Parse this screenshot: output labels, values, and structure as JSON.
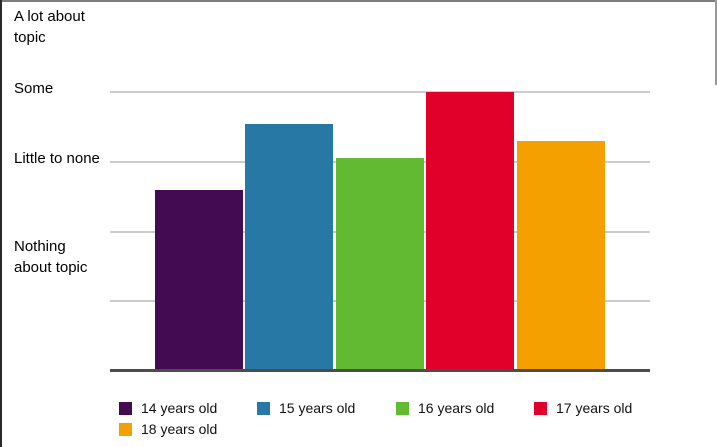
{
  "chart_data": {
    "type": "bar",
    "title": "",
    "xlabel": "",
    "ylabel": "",
    "categories": [
      "14 years old",
      "15 years old",
      "16 years old",
      "17 years old",
      "18 years old"
    ],
    "values": [
      2.6,
      3.54,
      3.05,
      4.0,
      3.3
    ],
    "bar_colors": [
      "#430b52",
      "#2878a5",
      "#62ba32",
      "#e00029",
      "#f4a000"
    ],
    "ylim": [
      0,
      5
    ],
    "y_tick_labels": [
      "A lot about\ntopic",
      "Some",
      "Little to none",
      "Nothing\nabout topic"
    ],
    "grid": "horizontal",
    "legend_position": "bottom"
  },
  "style": {
    "background": "#ffffff",
    "grid_color": "#cccccc",
    "axis_color": "#4c4c4c",
    "text_color": "#000000",
    "border_top_color": "#7d7d7d",
    "border_left_color": "#2a2a2a",
    "border_right_color": "#9a9a9a"
  }
}
